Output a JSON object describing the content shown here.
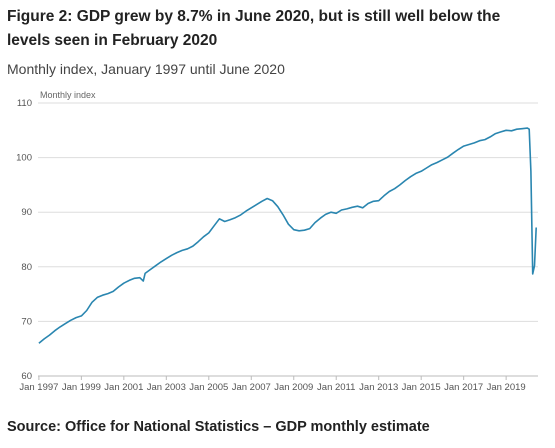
{
  "title": "Figure 2: GDP grew by 8.7% in June 2020, but is still well below the levels seen in February 2020",
  "subtitle": "Monthly index, January 1997 until June 2020",
  "source": "Source: Office for National Statistics – GDP monthly estimate",
  "colors": {
    "line": "#2a86b0",
    "grid": "#dddddd",
    "axis": "#bbbbbb"
  },
  "chart_data": {
    "type": "line",
    "ylabel": "Monthly index",
    "ylim": [
      60,
      110
    ],
    "yticks": [
      60,
      70,
      80,
      90,
      100,
      110
    ],
    "xlim": [
      "1997-01",
      "2020-06"
    ],
    "xticks": [
      {
        "date": "1997-01",
        "label": "Jan 1997"
      },
      {
        "date": "1999-01",
        "label": "Jan 1999"
      },
      {
        "date": "2001-01",
        "label": "Jan 2001"
      },
      {
        "date": "2003-01",
        "label": "Jan 2003"
      },
      {
        "date": "2005-01",
        "label": "Jan 2005"
      },
      {
        "date": "2007-01",
        "label": "Jan 2007"
      },
      {
        "date": "2009-01",
        "label": "Jan 2009"
      },
      {
        "date": "2011-01",
        "label": "Jan 2011"
      },
      {
        "date": "2013-01",
        "label": "Jan 2013"
      },
      {
        "date": "2015-01",
        "label": "Jan 2015"
      },
      {
        "date": "2017-01",
        "label": "Jan 2017"
      },
      {
        "date": "2019-01",
        "label": "Jan 2019"
      }
    ],
    "grid": true,
    "series": [
      {
        "points": [
          [
            "1997-01",
            66.0
          ],
          [
            "1997-04",
            66.8
          ],
          [
            "1997-07",
            67.5
          ],
          [
            "1997-10",
            68.3
          ],
          [
            "1998-01",
            69.0
          ],
          [
            "1998-04",
            69.6
          ],
          [
            "1998-07",
            70.2
          ],
          [
            "1998-10",
            70.7
          ],
          [
            "1999-01",
            71.0
          ],
          [
            "1999-04",
            72.0
          ],
          [
            "1999-07",
            73.5
          ],
          [
            "1999-10",
            74.4
          ],
          [
            "2000-01",
            74.8
          ],
          [
            "2000-04",
            75.1
          ],
          [
            "2000-07",
            75.5
          ],
          [
            "2000-10",
            76.3
          ],
          [
            "2001-01",
            77.0
          ],
          [
            "2001-04",
            77.5
          ],
          [
            "2001-07",
            77.9
          ],
          [
            "2001-10",
            78.0
          ],
          [
            "2001-12",
            77.4
          ],
          [
            "2002-01",
            78.8
          ],
          [
            "2002-04",
            79.5
          ],
          [
            "2002-07",
            80.2
          ],
          [
            "2002-10",
            80.9
          ],
          [
            "2003-01",
            81.5
          ],
          [
            "2003-04",
            82.1
          ],
          [
            "2003-07",
            82.6
          ],
          [
            "2003-10",
            83.0
          ],
          [
            "2004-01",
            83.3
          ],
          [
            "2004-04",
            83.8
          ],
          [
            "2004-07",
            84.6
          ],
          [
            "2004-10",
            85.5
          ],
          [
            "2005-01",
            86.2
          ],
          [
            "2005-04",
            87.5
          ],
          [
            "2005-07",
            88.8
          ],
          [
            "2005-10",
            88.3
          ],
          [
            "2006-01",
            88.6
          ],
          [
            "2006-04",
            89.0
          ],
          [
            "2006-07",
            89.5
          ],
          [
            "2006-10",
            90.2
          ],
          [
            "2007-01",
            90.8
          ],
          [
            "2007-04",
            91.4
          ],
          [
            "2007-07",
            92.0
          ],
          [
            "2007-10",
            92.5
          ],
          [
            "2008-01",
            92.1
          ],
          [
            "2008-04",
            91.0
          ],
          [
            "2008-07",
            89.5
          ],
          [
            "2008-10",
            87.8
          ],
          [
            "2009-01",
            86.8
          ],
          [
            "2009-04",
            86.6
          ],
          [
            "2009-07",
            86.7
          ],
          [
            "2009-10",
            87.0
          ],
          [
            "2010-01",
            88.1
          ],
          [
            "2010-04",
            88.9
          ],
          [
            "2010-07",
            89.6
          ],
          [
            "2010-10",
            90.0
          ],
          [
            "2011-01",
            89.8
          ],
          [
            "2011-04",
            90.4
          ],
          [
            "2011-07",
            90.6
          ],
          [
            "2011-10",
            90.9
          ],
          [
            "2012-01",
            91.1
          ],
          [
            "2012-04",
            90.8
          ],
          [
            "2012-07",
            91.6
          ],
          [
            "2012-10",
            92.0
          ],
          [
            "2013-01",
            92.1
          ],
          [
            "2013-04",
            93.0
          ],
          [
            "2013-07",
            93.8
          ],
          [
            "2013-10",
            94.3
          ],
          [
            "2014-01",
            95.0
          ],
          [
            "2014-04",
            95.8
          ],
          [
            "2014-07",
            96.5
          ],
          [
            "2014-10",
            97.1
          ],
          [
            "2015-01",
            97.5
          ],
          [
            "2015-04",
            98.1
          ],
          [
            "2015-07",
            98.7
          ],
          [
            "2015-10",
            99.1
          ],
          [
            "2016-01",
            99.6
          ],
          [
            "2016-04",
            100.1
          ],
          [
            "2016-07",
            100.8
          ],
          [
            "2016-10",
            101.5
          ],
          [
            "2017-01",
            102.1
          ],
          [
            "2017-04",
            102.4
          ],
          [
            "2017-07",
            102.7
          ],
          [
            "2017-10",
            103.1
          ],
          [
            "2018-01",
            103.3
          ],
          [
            "2018-04",
            103.8
          ],
          [
            "2018-07",
            104.4
          ],
          [
            "2018-10",
            104.7
          ],
          [
            "2019-01",
            105.0
          ],
          [
            "2019-04",
            104.9
          ],
          [
            "2019-07",
            105.2
          ],
          [
            "2019-10",
            105.3
          ],
          [
            "2020-01",
            105.4
          ],
          [
            "2020-02",
            105.2
          ],
          [
            "2020-03",
            97.5
          ],
          [
            "2020-04",
            78.7
          ],
          [
            "2020-05",
            80.2
          ],
          [
            "2020-06",
            87.2
          ]
        ]
      }
    ]
  }
}
